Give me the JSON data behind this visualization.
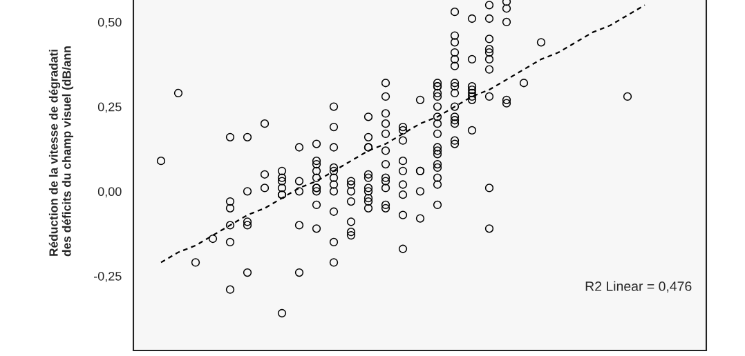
{
  "chart_data": {
    "type": "scatter",
    "ylabel": "Réduction de la vitesse de dégradati\ndes déficits du champ visuel (dB/ann",
    "annotations": [
      "R2 Linear = 0,476"
    ],
    "categories": [
      null,
      null,
      null,
      null,
      null,
      null,
      null,
      null,
      null,
      null,
      null,
      null,
      null,
      null,
      null,
      null,
      null,
      null,
      null,
      null,
      null,
      null,
      null,
      null,
      null,
      null,
      null,
      null,
      null,
      null,
      null
    ],
    "ylim": [
      -0.47,
      0.565
    ],
    "yticks": [
      {
        "value": -0.25,
        "label": "-0,25"
      },
      {
        "value": 0,
        "label": "0,00"
      },
      {
        "value": 0.25,
        "label": "0,25"
      },
      {
        "value": 0.5,
        "label": "0,50"
      }
    ],
    "tick_labels": "y",
    "grid": false,
    "legend": false,
    "marker": "circle",
    "series": [
      {
        "color": "#000000",
        "values": [
          0.09,
          0.29,
          -0.21,
          -0.14,
          0.16,
          0.16,
          0.2,
          0.06,
          0.13,
          0.14,
          0.25,
          0.03,
          0.22,
          0.32,
          0.19,
          0.27,
          0.32,
          0.53,
          0.51,
          0.55,
          0.56,
          0.32,
          0.44,
          null,
          null,
          null,
          null,
          0.28,
          null,
          null,
          null
        ]
      },
      {
        "color": "#000000",
        "values": [
          null,
          null,
          null,
          null,
          -0.03,
          0.0,
          0.05,
          0.04,
          0.03,
          0.09,
          0.19,
          0.02,
          0.16,
          0.28,
          0.18,
          0.06,
          0.31,
          0.46,
          0.39,
          0.51,
          0.54,
          null,
          null,
          null,
          null,
          null,
          null,
          null,
          null,
          null,
          null
        ]
      },
      {
        "color": "#000000",
        "values": [
          null,
          null,
          null,
          null,
          -0.05,
          -0.09,
          0.01,
          0.03,
          0.0,
          0.08,
          0.13,
          0.0,
          0.13,
          0.23,
          0.15,
          0.06,
          0.31,
          0.44,
          0.31,
          0.45,
          0.5,
          null,
          null,
          null,
          null,
          null,
          null,
          null,
          null,
          null,
          null
        ]
      },
      {
        "color": "#000000",
        "values": [
          null,
          null,
          null,
          null,
          -0.1,
          -0.1,
          null,
          0.01,
          -0.1,
          0.06,
          0.07,
          -0.03,
          0.13,
          0.2,
          0.09,
          0.0,
          0.29,
          0.41,
          0.3,
          0.42,
          0.27,
          null,
          null,
          null,
          null,
          null,
          null,
          null,
          null,
          null,
          null
        ]
      },
      {
        "color": "#000000",
        "values": [
          null,
          null,
          null,
          null,
          -0.15,
          -0.24,
          null,
          -0.01,
          -0.24,
          0.04,
          0.06,
          -0.09,
          0.05,
          0.17,
          0.06,
          -0.08,
          0.28,
          0.39,
          0.29,
          0.41,
          0.26,
          null,
          null,
          null,
          null,
          null,
          null,
          null,
          null,
          null,
          null
        ]
      },
      {
        "color": "#000000",
        "values": [
          null,
          null,
          null,
          null,
          -0.29,
          null,
          null,
          -0.01,
          null,
          0.01,
          0.04,
          -0.12,
          0.04,
          0.12,
          0.02,
          null,
          0.25,
          0.37,
          0.28,
          0.39,
          null,
          null,
          null,
          null,
          null,
          null,
          null,
          null,
          null,
          null,
          null
        ]
      },
      {
        "color": "#000000",
        "values": [
          null,
          null,
          null,
          null,
          null,
          null,
          null,
          -0.36,
          null,
          0.01,
          0.02,
          -0.13,
          0.01,
          0.08,
          -0.01,
          null,
          0.22,
          0.32,
          0.27,
          0.36,
          null,
          null,
          null,
          null,
          null,
          null,
          null,
          null,
          null,
          null,
          null
        ]
      },
      {
        "color": "#000000",
        "values": [
          null,
          null,
          null,
          null,
          null,
          null,
          null,
          null,
          null,
          0.0,
          0.0,
          null,
          0.0,
          0.04,
          -0.07,
          null,
          0.2,
          0.31,
          0.18,
          0.28,
          null,
          null,
          null,
          null,
          null,
          null,
          null,
          null,
          null,
          null,
          null
        ]
      },
      {
        "color": "#000000",
        "values": [
          null,
          null,
          null,
          null,
          null,
          null,
          null,
          null,
          null,
          -0.04,
          -0.06,
          null,
          -0.02,
          0.03,
          -0.17,
          null,
          0.17,
          0.29,
          null,
          0.01,
          null,
          null,
          null,
          null,
          null,
          null,
          null,
          null,
          null,
          null,
          null
        ]
      },
      {
        "color": "#000000",
        "values": [
          null,
          null,
          null,
          null,
          null,
          null,
          null,
          null,
          null,
          -0.11,
          -0.15,
          null,
          -0.03,
          0.01,
          null,
          null,
          0.13,
          0.25,
          null,
          -0.11,
          null,
          null,
          null,
          null,
          null,
          null,
          null,
          null,
          null,
          null,
          null
        ]
      },
      {
        "color": "#000000",
        "values": [
          null,
          null,
          null,
          null,
          null,
          null,
          null,
          null,
          null,
          null,
          -0.21,
          null,
          -0.05,
          -0.04,
          null,
          null,
          0.12,
          0.22,
          null,
          null,
          null,
          null,
          null,
          null,
          null,
          null,
          null,
          null,
          null,
          null,
          null
        ]
      },
      {
        "color": "#000000",
        "values": [
          null,
          null,
          null,
          null,
          null,
          null,
          null,
          null,
          null,
          null,
          null,
          null,
          null,
          -0.05,
          null,
          null,
          0.11,
          0.21,
          null,
          null,
          null,
          null,
          null,
          null,
          null,
          null,
          null,
          null,
          null,
          null,
          null
        ]
      },
      {
        "color": "#000000",
        "values": [
          null,
          null,
          null,
          null,
          null,
          null,
          null,
          null,
          null,
          null,
          null,
          null,
          null,
          null,
          null,
          null,
          0.08,
          0.2,
          null,
          null,
          null,
          null,
          null,
          null,
          null,
          null,
          null,
          null,
          null,
          null,
          null
        ]
      },
      {
        "color": "#000000",
        "values": [
          null,
          null,
          null,
          null,
          null,
          null,
          null,
          null,
          null,
          null,
          null,
          null,
          null,
          null,
          null,
          null,
          0.07,
          0.15,
          null,
          null,
          null,
          null,
          null,
          null,
          null,
          null,
          null,
          null,
          null,
          null,
          null
        ]
      },
      {
        "color": "#000000",
        "values": [
          null,
          null,
          null,
          null,
          null,
          null,
          null,
          null,
          null,
          null,
          null,
          null,
          null,
          null,
          null,
          null,
          0.04,
          0.14,
          null,
          null,
          null,
          null,
          null,
          null,
          null,
          null,
          null,
          null,
          null,
          null,
          null
        ]
      },
      {
        "color": "#000000",
        "values": [
          null,
          null,
          null,
          null,
          null,
          null,
          null,
          null,
          null,
          null,
          null,
          null,
          null,
          null,
          null,
          null,
          0.02,
          null,
          null,
          null,
          null,
          null,
          null,
          null,
          null,
          null,
          null,
          null,
          null,
          null,
          null
        ]
      },
      {
        "color": "#000000",
        "values": [
          null,
          null,
          null,
          null,
          null,
          null,
          null,
          null,
          null,
          null,
          null,
          null,
          null,
          null,
          null,
          null,
          -0.04,
          null,
          null,
          null,
          null,
          null,
          null,
          null,
          null,
          null,
          null,
          null,
          null,
          null,
          null
        ]
      },
      {
        "type": "line",
        "color": "#000000",
        "line_style": "dashed",
        "marker": "none",
        "values": [
          -0.21,
          -0.18,
          -0.16,
          -0.13,
          -0.1,
          -0.07,
          -0.05,
          -0.02,
          0.01,
          0.03,
          0.06,
          0.09,
          0.12,
          0.14,
          0.17,
          0.2,
          0.22,
          0.25,
          0.28,
          0.3,
          0.33,
          0.36,
          0.39,
          0.41,
          0.44,
          0.47,
          0.49,
          0.52,
          0.55,
          null,
          null
        ]
      }
    ]
  }
}
